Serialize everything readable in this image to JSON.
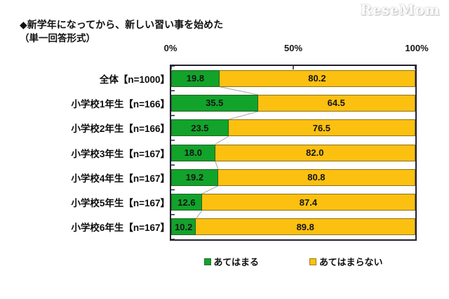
{
  "logo": "ReseMom",
  "title": {
    "line1": "◆新学年になってから、新しい習い事を始めた",
    "line2": "（単一回答形式）"
  },
  "axis": {
    "ticks": [
      "0%",
      "50%",
      "100%"
    ]
  },
  "legend": {
    "items": [
      "あてはまる",
      "あてはまらない"
    ]
  },
  "colors": {
    "applies": "#12a32b",
    "not_applies": "#fcc011",
    "connector": "#b3b3b3",
    "axis": "#21212f"
  },
  "chart_data": {
    "type": "bar",
    "orientation": "horizontal",
    "stacked": true,
    "title": "新学年になってから、新しい習い事を始めた（単一回答形式）",
    "categories": [
      "全体【n=1000】",
      "小学校1年生【n=166】",
      "小学校2年生【n=166】",
      "小学校3年生【n=167】",
      "小学校4年生【n=167】",
      "小学校5年生【n=167】",
      "小学校6年生【n=167】"
    ],
    "series": [
      {
        "name": "あてはまる",
        "color": "#12a32b",
        "values": [
          19.8,
          35.5,
          23.5,
          18.0,
          19.2,
          12.6,
          10.2
        ]
      },
      {
        "name": "あてはまらない",
        "color": "#fcc011",
        "values": [
          80.2,
          64.5,
          76.5,
          82.0,
          80.8,
          87.4,
          89.8
        ]
      }
    ],
    "xlim": [
      0,
      100
    ],
    "xticks": [
      0,
      50,
      100
    ],
    "value_labels": "inside-center, one decimal",
    "legend_position": "bottom",
    "series_connector_lines": true
  }
}
